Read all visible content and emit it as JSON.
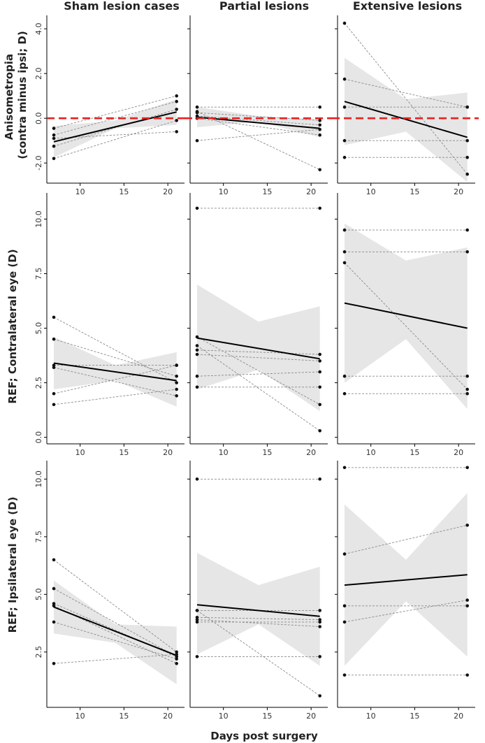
{
  "figure": {
    "xlabel": "Days post surgery",
    "columns": [
      "Sham lesion cases",
      "Partial lesions",
      "Extensive lesions"
    ],
    "rows": [
      "Anisometropia\n(contra minus ipsi; D)",
      "REF; Contralateral eye (D)",
      "REF; Ipsilateral eye (D)"
    ]
  },
  "colors": {
    "point": "#111111",
    "individual_line": "#8a8a8a",
    "fit_line": "#000000",
    "ci_band": "#e6e6e6",
    "zero_ref": "#e8211f",
    "axis": "#000000"
  },
  "chart_data": [
    {
      "type": "line",
      "row": 0,
      "col": 0,
      "title": "Sham lesion cases",
      "ylabel": "Anisometropia\n(contra minus ipsi; D)",
      "xlabel": "",
      "xlim": [
        6.2,
        21.9
      ],
      "ylim": [
        -2.9,
        4.6
      ],
      "xticks": [
        10,
        15,
        20
      ],
      "xtick_labels": [
        "10",
        "15",
        "20"
      ],
      "yticks": [
        -2.0,
        0.0,
        2.0,
        4.0
      ],
      "ytick_labels": [
        "-2.0",
        "0.0",
        "2.0",
        "4.0"
      ],
      "reference_line": 0,
      "series": [
        {
          "x": [
            7,
            21
          ],
          "y": [
            -0.45,
            1.0
          ]
        },
        {
          "x": [
            7,
            21
          ],
          "y": [
            -0.75,
            0.75
          ]
        },
        {
          "x": [
            7,
            21
          ],
          "y": [
            -1.25,
            0.4
          ]
        },
        {
          "x": [
            7,
            21
          ],
          "y": [
            -0.9,
            -0.6
          ]
        },
        {
          "x": [
            7,
            21
          ],
          "y": [
            -1.8,
            -0.1
          ]
        }
      ],
      "fit": {
        "x": [
          7,
          21
        ],
        "y": [
          -1.05,
          0.28
        ]
      },
      "ci": {
        "x": [
          7,
          14,
          21
        ],
        "upper": [
          -0.35,
          -0.1,
          0.85
        ],
        "lower": [
          -1.75,
          -0.45,
          -0.3
        ]
      }
    },
    {
      "type": "line",
      "row": 0,
      "col": 1,
      "title": "Partial lesions",
      "ylabel": "",
      "xlabel": "",
      "xlim": [
        6.2,
        21.9
      ],
      "ylim": [
        -2.9,
        4.6
      ],
      "xticks": [
        10,
        15,
        20
      ],
      "xtick_labels": [
        "10",
        "15",
        "20"
      ],
      "yticks": [
        -2.0,
        0.0,
        2.0,
        4.0
      ],
      "ytick_labels": [
        "",
        "",
        "",
        ""
      ],
      "reference_line": 0,
      "series": [
        {
          "x": [
            7,
            21
          ],
          "y": [
            0.5,
            0.5
          ]
        },
        {
          "x": [
            7,
            21
          ],
          "y": [
            0.3,
            -2.3
          ]
        },
        {
          "x": [
            7,
            21
          ],
          "y": [
            0.25,
            -0.1
          ]
        },
        {
          "x": [
            7,
            21
          ],
          "y": [
            0.1,
            -0.3
          ]
        },
        {
          "x": [
            7,
            21
          ],
          "y": [
            0.0,
            -0.75
          ]
        },
        {
          "x": [
            7,
            21
          ],
          "y": [
            -1.0,
            -0.5
          ]
        }
      ],
      "fit": {
        "x": [
          7,
          21
        ],
        "y": [
          0.05,
          -0.45
        ]
      },
      "ci": {
        "x": [
          7,
          14,
          21
        ],
        "upper": [
          0.5,
          0.1,
          -0.05
        ],
        "lower": [
          -0.4,
          -0.15,
          -0.85
        ]
      }
    },
    {
      "type": "line",
      "row": 0,
      "col": 2,
      "title": "Extensive lesions",
      "ylabel": "",
      "xlabel": "",
      "xlim": [
        6.2,
        21.9
      ],
      "ylim": [
        -2.9,
        4.6
      ],
      "xticks": [
        10,
        15,
        20
      ],
      "xtick_labels": [
        "10",
        "15",
        "20"
      ],
      "yticks": [
        -2.0,
        0.0,
        2.0,
        4.0
      ],
      "ytick_labels": [
        "",
        "",
        "",
        ""
      ],
      "reference_line": 0,
      "series": [
        {
          "x": [
            7,
            21
          ],
          "y": [
            4.25,
            -2.5
          ]
        },
        {
          "x": [
            7,
            21
          ],
          "y": [
            1.75,
            0.5
          ]
        },
        {
          "x": [
            7,
            21
          ],
          "y": [
            0.5,
            0.5
          ]
        },
        {
          "x": [
            7,
            21
          ],
          "y": [
            -1.0,
            -1.0
          ]
        },
        {
          "x": [
            7,
            21
          ],
          "y": [
            -1.75,
            -1.75
          ]
        }
      ],
      "fit": {
        "x": [
          7,
          21
        ],
        "y": [
          0.75,
          -0.85
        ]
      },
      "ci": {
        "x": [
          7,
          14,
          21
        ],
        "upper": [
          2.7,
          0.85,
          1.15
        ],
        "lower": [
          -1.2,
          -0.6,
          -2.85
        ]
      }
    },
    {
      "type": "line",
      "row": 1,
      "col": 0,
      "title": "",
      "ylabel": "REF; Contralateral eye (D)",
      "xlabel": "",
      "xlim": [
        6.2,
        21.9
      ],
      "ylim": [
        -0.3,
        11.2
      ],
      "xticks": [
        10,
        15,
        20
      ],
      "xtick_labels": [
        "10",
        "15",
        "20"
      ],
      "yticks": [
        0.0,
        2.5,
        5.0,
        7.5,
        10.0
      ],
      "ytick_labels": [
        "0.0",
        "2.5",
        "5.0",
        "7.5",
        "10.0"
      ],
      "series": [
        {
          "x": [
            7,
            21
          ],
          "y": [
            5.5,
            2.5
          ]
        },
        {
          "x": [
            7,
            21
          ],
          "y": [
            4.5,
            2.8
          ]
        },
        {
          "x": [
            7,
            21
          ],
          "y": [
            3.3,
            3.3
          ]
        },
        {
          "x": [
            7,
            21
          ],
          "y": [
            2.0,
            3.3
          ]
        },
        {
          "x": [
            7,
            21
          ],
          "y": [
            1.5,
            2.2
          ]
        },
        {
          "x": [
            7,
            21
          ],
          "y": [
            3.2,
            1.9
          ]
        }
      ],
      "fit": {
        "x": [
          7,
          21
        ],
        "y": [
          3.4,
          2.6
        ]
      },
      "ci": {
        "x": [
          7,
          14,
          21
        ],
        "upper": [
          4.6,
          3.3,
          3.9
        ],
        "lower": [
          2.2,
          2.6,
          1.4
        ]
      }
    },
    {
      "type": "line",
      "row": 1,
      "col": 1,
      "title": "",
      "ylabel": "",
      "xlabel": "",
      "xlim": [
        6.2,
        21.9
      ],
      "ylim": [
        -0.3,
        11.2
      ],
      "xticks": [
        10,
        15,
        20
      ],
      "xtick_labels": [
        "10",
        "15",
        "20"
      ],
      "yticks": [
        0.0,
        2.5,
        5.0,
        7.5,
        10.0
      ],
      "ytick_labels": [
        "",
        "",
        "",
        "",
        ""
      ],
      "series": [
        {
          "x": [
            7,
            21
          ],
          "y": [
            10.5,
            10.5
          ]
        },
        {
          "x": [
            7,
            21
          ],
          "y": [
            4.6,
            1.5
          ]
        },
        {
          "x": [
            7,
            21
          ],
          "y": [
            4.0,
            3.8
          ]
        },
        {
          "x": [
            7,
            21
          ],
          "y": [
            3.8,
            3.5
          ]
        },
        {
          "x": [
            7,
            21
          ],
          "y": [
            2.8,
            3.0
          ]
        },
        {
          "x": [
            7,
            21
          ],
          "y": [
            2.3,
            2.3
          ]
        },
        {
          "x": [
            7,
            21
          ],
          "y": [
            4.2,
            0.3
          ]
        }
      ],
      "fit": {
        "x": [
          7,
          21
        ],
        "y": [
          4.55,
          3.6
        ]
      },
      "ci": {
        "x": [
          7,
          14,
          21
        ],
        "upper": [
          7.0,
          5.3,
          6.0
        ],
        "lower": [
          2.2,
          3.1,
          1.2
        ]
      }
    },
    {
      "type": "line",
      "row": 1,
      "col": 2,
      "title": "",
      "ylabel": "",
      "xlabel": "",
      "xlim": [
        6.2,
        21.9
      ],
      "ylim": [
        -0.3,
        11.2
      ],
      "xticks": [
        10,
        15,
        20
      ],
      "xtick_labels": [
        "10",
        "15",
        "20"
      ],
      "yticks": [
        0.0,
        2.5,
        5.0,
        7.5,
        10.0
      ],
      "ytick_labels": [
        "",
        "",
        "",
        "",
        ""
      ],
      "series": [
        {
          "x": [
            7,
            21
          ],
          "y": [
            9.5,
            9.5
          ]
        },
        {
          "x": [
            7,
            21
          ],
          "y": [
            8.5,
            8.5
          ]
        },
        {
          "x": [
            7,
            21
          ],
          "y": [
            8.0,
            2.2
          ]
        },
        {
          "x": [
            7,
            21
          ],
          "y": [
            2.8,
            2.8
          ]
        },
        {
          "x": [
            7,
            21
          ],
          "y": [
            2.0,
            2.0
          ]
        }
      ],
      "fit": {
        "x": [
          7,
          21
        ],
        "y": [
          6.15,
          5.0
        ]
      },
      "ci": {
        "x": [
          7,
          14,
          21
        ],
        "upper": [
          9.8,
          8.1,
          8.7
        ],
        "lower": [
          2.5,
          4.5,
          1.3
        ]
      }
    },
    {
      "type": "line",
      "row": 2,
      "col": 0,
      "title": "",
      "ylabel": "REF; Ipsilateral eye (D)",
      "xlabel": "",
      "xlim": [
        6.2,
        21.9
      ],
      "ylim": [
        0.1,
        10.8
      ],
      "xticks": [
        10,
        15,
        20
      ],
      "xtick_labels": [
        "10",
        "15",
        "20"
      ],
      "yticks": [
        2.5,
        5.0,
        7.5,
        10.0
      ],
      "ytick_labels": [
        "2.5",
        "5.0",
        "7.5",
        "10.0"
      ],
      "series": [
        {
          "x": [
            7,
            21
          ],
          "y": [
            6.5,
            2.5
          ]
        },
        {
          "x": [
            7,
            21
          ],
          "y": [
            5.25,
            2.3
          ]
        },
        {
          "x": [
            7,
            21
          ],
          "y": [
            4.6,
            2.3
          ]
        },
        {
          "x": [
            7,
            21
          ],
          "y": [
            4.5,
            2.0
          ]
        },
        {
          "x": [
            7,
            21
          ],
          "y": [
            3.8,
            2.2
          ]
        },
        {
          "x": [
            7,
            21
          ],
          "y": [
            2.0,
            2.4
          ]
        }
      ],
      "fit": {
        "x": [
          7,
          21
        ],
        "y": [
          4.45,
          2.35
        ]
      },
      "ci": {
        "x": [
          7,
          14,
          21
        ],
        "upper": [
          5.6,
          3.7,
          3.6
        ],
        "lower": [
          3.3,
          2.9,
          1.1
        ]
      }
    },
    {
      "type": "line",
      "row": 2,
      "col": 1,
      "title": "",
      "ylabel": "",
      "xlabel": "",
      "xlim": [
        6.2,
        21.9
      ],
      "ylim": [
        0.1,
        10.8
      ],
      "xticks": [
        10,
        15,
        20
      ],
      "xtick_labels": [
        "10",
        "15",
        "20"
      ],
      "yticks": [
        2.5,
        5.0,
        7.5,
        10.0
      ],
      "ytick_labels": [
        "",
        "",
        "",
        ""
      ],
      "series": [
        {
          "x": [
            7,
            21
          ],
          "y": [
            10.0,
            10.0
          ]
        },
        {
          "x": [
            7,
            21
          ],
          "y": [
            4.3,
            4.3
          ]
        },
        {
          "x": [
            7,
            21
          ],
          "y": [
            4.0,
            3.9
          ]
        },
        {
          "x": [
            7,
            21
          ],
          "y": [
            3.9,
            3.6
          ]
        },
        {
          "x": [
            7,
            21
          ],
          "y": [
            3.8,
            3.8
          ]
        },
        {
          "x": [
            7,
            21
          ],
          "y": [
            2.3,
            2.3
          ]
        },
        {
          "x": [
            7,
            21
          ],
          "y": [
            4.3,
            0.6
          ]
        }
      ],
      "fit": {
        "x": [
          7,
          21
        ],
        "y": [
          4.55,
          4.05
        ]
      },
      "ci": {
        "x": [
          7,
          14,
          21
        ],
        "upper": [
          6.8,
          5.4,
          6.2
        ],
        "lower": [
          2.4,
          3.7,
          1.9
        ]
      }
    },
    {
      "type": "line",
      "row": 2,
      "col": 2,
      "title": "",
      "ylabel": "",
      "xlabel": "",
      "xlim": [
        6.2,
        21.9
      ],
      "ylim": [
        0.1,
        10.8
      ],
      "xticks": [
        10,
        15,
        20
      ],
      "xtick_labels": [
        "10",
        "15",
        "20"
      ],
      "yticks": [
        2.5,
        5.0,
        7.5,
        10.0
      ],
      "ytick_labels": [
        "",
        "",
        "",
        ""
      ],
      "series": [
        {
          "x": [
            7,
            21
          ],
          "y": [
            10.5,
            10.5
          ]
        },
        {
          "x": [
            7,
            21
          ],
          "y": [
            6.75,
            8.0
          ]
        },
        {
          "x": [
            7,
            21
          ],
          "y": [
            4.5,
            4.5
          ]
        },
        {
          "x": [
            7,
            21
          ],
          "y": [
            3.8,
            4.75
          ]
        },
        {
          "x": [
            7,
            21
          ],
          "y": [
            1.5,
            1.5
          ]
        }
      ],
      "fit": {
        "x": [
          7,
          21
        ],
        "y": [
          5.4,
          5.85
        ]
      },
      "ci": {
        "x": [
          7,
          14,
          21
        ],
        "upper": [
          8.9,
          6.5,
          9.4
        ],
        "lower": [
          1.9,
          4.7,
          2.3
        ]
      }
    }
  ]
}
